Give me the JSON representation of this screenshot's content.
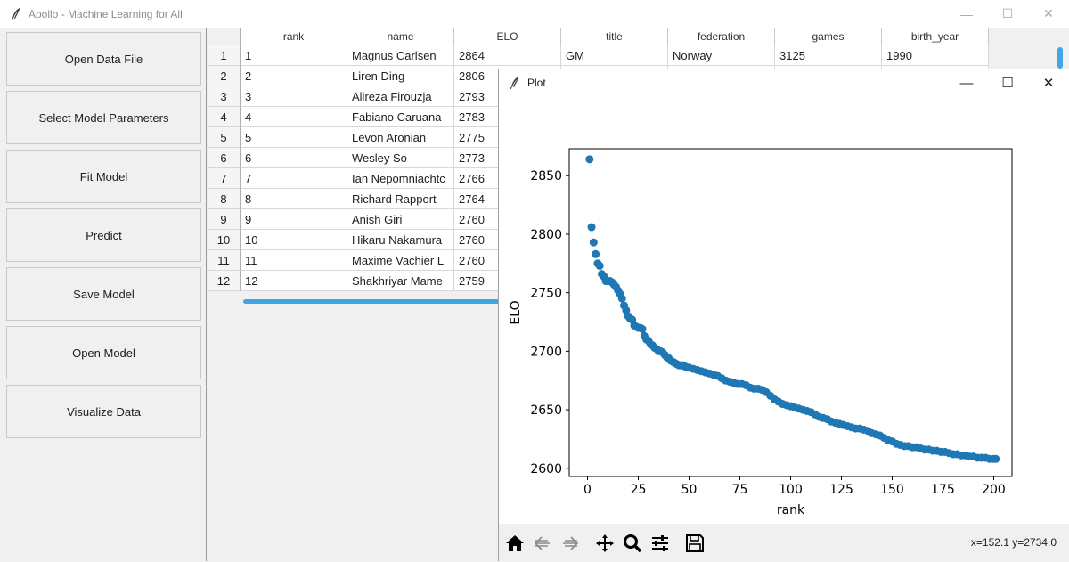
{
  "window": {
    "title": "Apollo - Machine Learning for All",
    "controls": [
      "—",
      "☐",
      "✕"
    ]
  },
  "sidebar": {
    "buttons": [
      "Open Data File",
      "Select Model Parameters",
      "Fit Model",
      "Predict",
      "Save Model",
      "Open Model",
      "Visualize Data"
    ]
  },
  "table": {
    "columns": [
      "rank",
      "name",
      "ELO",
      "title",
      "federation",
      "games",
      "birth_year"
    ],
    "rows": [
      {
        "idx": "1",
        "cells": [
          "1",
          "Magnus Carlsen",
          "2864",
          "GM",
          "Norway",
          "3125",
          "1990"
        ]
      },
      {
        "idx": "2",
        "cells": [
          "2",
          "Liren Ding",
          "2806",
          "",
          "",
          "",
          ""
        ]
      },
      {
        "idx": "3",
        "cells": [
          "3",
          "Alireza Firouzja",
          "2793",
          "",
          "",
          "",
          ""
        ]
      },
      {
        "idx": "4",
        "cells": [
          "4",
          "Fabiano Caruana",
          "2783",
          "",
          "",
          "",
          ""
        ]
      },
      {
        "idx": "5",
        "cells": [
          "5",
          "Levon Aronian",
          "2775",
          "",
          "",
          "",
          ""
        ]
      },
      {
        "idx": "6",
        "cells": [
          "6",
          "Wesley So",
          "2773",
          "",
          "",
          "",
          ""
        ]
      },
      {
        "idx": "7",
        "cells": [
          "7",
          "Ian Nepomniachtc",
          "2766",
          "",
          "",
          "",
          ""
        ]
      },
      {
        "idx": "8",
        "cells": [
          "8",
          "Richard Rapport",
          "2764",
          "",
          "",
          "",
          ""
        ]
      },
      {
        "idx": "9",
        "cells": [
          "9",
          "Anish Giri",
          "2760",
          "",
          "",
          "",
          ""
        ]
      },
      {
        "idx": "10",
        "cells": [
          "10",
          "Hikaru Nakamura",
          "2760",
          "",
          "",
          "",
          ""
        ]
      },
      {
        "idx": "11",
        "cells": [
          "11",
          "Maxime Vachier L",
          "2760",
          "",
          "",
          "",
          ""
        ]
      },
      {
        "idx": "12",
        "cells": [
          "12",
          "Shakhriyar Mame",
          "2759",
          "",
          "",
          "",
          ""
        ]
      }
    ]
  },
  "plot_window": {
    "title": "Plot",
    "controls": [
      "—",
      "☐",
      "✕"
    ],
    "coords": "x=152.1 y=2734.0",
    "toolbar": [
      "home-icon",
      "back-arrow-icon",
      "forward-arrow-icon",
      "pan-icon",
      "zoom-icon",
      "configure-subplots-icon",
      "save-icon"
    ]
  },
  "chart_data": {
    "type": "scatter",
    "xlabel": "rank",
    "ylabel": "ELO",
    "xlim": [
      -9,
      209
    ],
    "ylim": [
      2593,
      2873
    ],
    "xticks": [
      0,
      25,
      50,
      75,
      100,
      125,
      150,
      175,
      200
    ],
    "yticks": [
      2600,
      2650,
      2700,
      2750,
      2800,
      2850
    ],
    "color": "#1f77b4",
    "series": [
      {
        "points": [
          [
            1,
            2864
          ],
          [
            2,
            2806
          ],
          [
            3,
            2793
          ],
          [
            4,
            2783
          ],
          [
            5,
            2775
          ],
          [
            6,
            2773
          ],
          [
            7,
            2766
          ],
          [
            8,
            2764
          ],
          [
            9,
            2760
          ],
          [
            10,
            2760
          ],
          [
            11,
            2760
          ],
          [
            12,
            2759
          ],
          [
            13,
            2757
          ],
          [
            14,
            2755
          ],
          [
            15,
            2752
          ],
          [
            16,
            2749
          ],
          [
            17,
            2745
          ],
          [
            18,
            2739
          ],
          [
            19,
            2735
          ],
          [
            20,
            2730
          ],
          [
            21,
            2728
          ],
          [
            22,
            2727
          ],
          [
            23,
            2722
          ],
          [
            24,
            2721
          ],
          [
            25,
            2720
          ],
          [
            26,
            2720
          ],
          [
            27,
            2719
          ],
          [
            28,
            2713
          ],
          [
            29,
            2710
          ],
          [
            30,
            2709
          ],
          [
            31,
            2706
          ],
          [
            32,
            2705
          ],
          [
            33,
            2703
          ],
          [
            34,
            2702
          ],
          [
            35,
            2700
          ],
          [
            36,
            2700
          ],
          [
            37,
            2699
          ],
          [
            38,
            2697
          ],
          [
            39,
            2695
          ],
          [
            40,
            2694
          ],
          [
            41,
            2692
          ],
          [
            42,
            2691
          ],
          [
            43,
            2690
          ],
          [
            44,
            2689
          ],
          [
            45,
            2688
          ],
          [
            46,
            2688
          ],
          [
            47,
            2688
          ],
          [
            48,
            2687
          ],
          [
            49,
            2686
          ],
          [
            50,
            2686
          ],
          [
            52,
            2685
          ],
          [
            54,
            2684
          ],
          [
            56,
            2683
          ],
          [
            58,
            2682
          ],
          [
            60,
            2681
          ],
          [
            62,
            2680
          ],
          [
            64,
            2679
          ],
          [
            66,
            2677
          ],
          [
            68,
            2675
          ],
          [
            70,
            2674
          ],
          [
            72,
            2673
          ],
          [
            74,
            2672
          ],
          [
            76,
            2672
          ],
          [
            78,
            2671
          ],
          [
            80,
            2669
          ],
          [
            82,
            2668
          ],
          [
            84,
            2668
          ],
          [
            86,
            2667
          ],
          [
            88,
            2665
          ],
          [
            90,
            2662
          ],
          [
            92,
            2659
          ],
          [
            94,
            2657
          ],
          [
            96,
            2655
          ],
          [
            98,
            2654
          ],
          [
            100,
            2653
          ],
          [
            102,
            2652
          ],
          [
            104,
            2651
          ],
          [
            106,
            2650
          ],
          [
            108,
            2649
          ],
          [
            110,
            2648
          ],
          [
            112,
            2646
          ],
          [
            114,
            2644
          ],
          [
            116,
            2643
          ],
          [
            118,
            2642
          ],
          [
            120,
            2640
          ],
          [
            122,
            2639
          ],
          [
            124,
            2638
          ],
          [
            126,
            2637
          ],
          [
            128,
            2636
          ],
          [
            130,
            2635
          ],
          [
            132,
            2634
          ],
          [
            134,
            2634
          ],
          [
            136,
            2633
          ],
          [
            138,
            2632
          ],
          [
            140,
            2630
          ],
          [
            142,
            2629
          ],
          [
            144,
            2628
          ],
          [
            146,
            2626
          ],
          [
            148,
            2624
          ],
          [
            150,
            2623
          ],
          [
            152,
            2621
          ],
          [
            154,
            2620
          ],
          [
            156,
            2619
          ],
          [
            158,
            2619
          ],
          [
            160,
            2618
          ],
          [
            162,
            2618
          ],
          [
            164,
            2617
          ],
          [
            166,
            2616
          ],
          [
            168,
            2616
          ],
          [
            170,
            2615
          ],
          [
            172,
            2615
          ],
          [
            174,
            2614
          ],
          [
            176,
            2614
          ],
          [
            178,
            2613
          ],
          [
            180,
            2612
          ],
          [
            182,
            2612
          ],
          [
            184,
            2611
          ],
          [
            186,
            2611
          ],
          [
            188,
            2610
          ],
          [
            190,
            2610
          ],
          [
            192,
            2609
          ],
          [
            194,
            2609
          ],
          [
            196,
            2609
          ],
          [
            198,
            2608
          ],
          [
            200,
            2608
          ],
          [
            201,
            2608
          ]
        ]
      }
    ]
  }
}
